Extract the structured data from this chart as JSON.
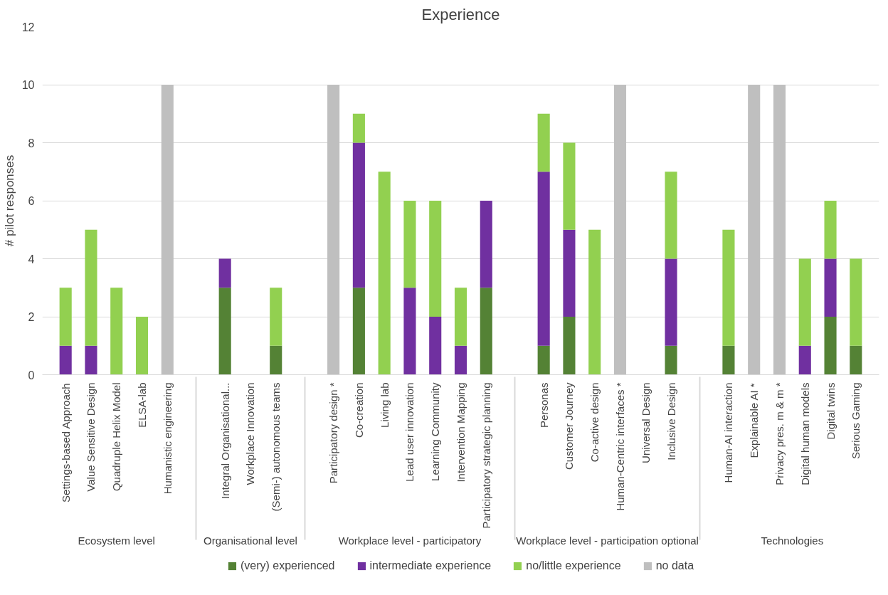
{
  "chart_data": {
    "type": "bar",
    "title": "Experience",
    "ylabel": "# pilot responses",
    "stacked": true,
    "categories": [
      null,
      "Settings-based Approach",
      "Value Sensitive Design",
      "Quadruple Helix Model",
      "ELSA-lab",
      "Humanistic engineering",
      null,
      "Integral Organisational...",
      "Workplace Innovation",
      "(Semi-) autonomous teams",
      null,
      "Participatory design *",
      "Co-creation",
      "Living lab",
      "Lead user innovation",
      "Learning Community",
      "Intervention Mapping",
      "Participatory strategic planning",
      null,
      "Personas",
      "Customer Journey",
      "Co-active design",
      "Human-Centric interfaces *",
      "Universal Design",
      "Inclusive Design",
      null,
      "Human-AI interaction",
      "Explainable AI *",
      "Privacy pres. m & m *",
      "Digital human models",
      "Digital twins",
      "Serious Gaming",
      null
    ],
    "annotations": [
      "Ecosystem level",
      "Organisational level",
      "Workplace level - participatory",
      "Workplace level - participation optional",
      "Technologies"
    ],
    "series": [
      {
        "name": "(very) experienced",
        "color": "#548235",
        "values": [
          null,
          0,
          0,
          0,
          0,
          0,
          null,
          3,
          0,
          1,
          null,
          0,
          3,
          0,
          0,
          0,
          0,
          3,
          null,
          1,
          2,
          0,
          0,
          0,
          1,
          null,
          1,
          0,
          0,
          0,
          2,
          1,
          null
        ]
      },
      {
        "name": "intermediate experience",
        "color": "#7030a0",
        "values": [
          null,
          1,
          1,
          0,
          0,
          0,
          null,
          1,
          0,
          0,
          null,
          0,
          5,
          0,
          3,
          2,
          1,
          3,
          null,
          6,
          3,
          0,
          0,
          0,
          3,
          null,
          0,
          0,
          0,
          1,
          2,
          0,
          null
        ]
      },
      {
        "name": "no/little experience",
        "color": "#92d050",
        "values": [
          null,
          2,
          4,
          3,
          2,
          0,
          null,
          0,
          0,
          2,
          null,
          0,
          1,
          7,
          3,
          4,
          2,
          0,
          null,
          2,
          3,
          5,
          0,
          0,
          3,
          null,
          4,
          0,
          0,
          3,
          2,
          3,
          null
        ]
      },
      {
        "name": "no data",
        "color": "#bfbfbf",
        "values": [
          null,
          0,
          0,
          0,
          0,
          10,
          null,
          0,
          0,
          0,
          null,
          10,
          0,
          0,
          0,
          0,
          0,
          0,
          null,
          0,
          0,
          0,
          10,
          0,
          0,
          null,
          0,
          10,
          10,
          0,
          0,
          0,
          null
        ]
      }
    ],
    "ylim": [
      0,
      12
    ],
    "yticks": [
      0,
      2,
      4,
      6,
      8,
      10,
      12
    ],
    "grid": "y",
    "legend": "bottom"
  }
}
